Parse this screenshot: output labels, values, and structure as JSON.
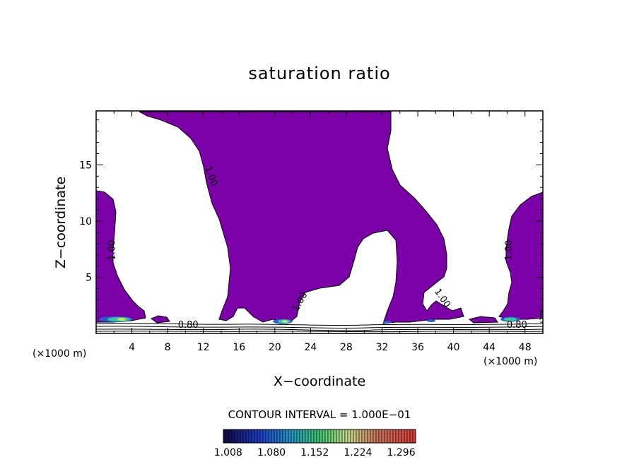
{
  "chart_data": {
    "type": "contour",
    "title": "saturation ratio",
    "xlabel": "X−coordinate",
    "ylabel": "Z−coordinate",
    "x_unit_label": "(×1000 m)",
    "z_unit_label": "(×1000 m)",
    "xlim": [
      0,
      50
    ],
    "ylim": [
      0,
      19.8
    ],
    "x_ticks": [
      4,
      8,
      12,
      16,
      20,
      24,
      28,
      32,
      36,
      40,
      44,
      48
    ],
    "y_ticks": [
      5,
      10,
      15
    ],
    "contour_interval_label": "CONTOUR INTERVAL = 1.000E−01",
    "contour_labels": [
      {
        "text": "1.00",
        "x": 12.6,
        "z": 13.9
      },
      {
        "text": "1.00",
        "x": 2.1,
        "z": 7.4
      },
      {
        "text": "1.00",
        "x": 23.1,
        "z": 2.7
      },
      {
        "text": "1.00",
        "x": 38.5,
        "z": 3.0
      },
      {
        "text": "1.00",
        "x": 46.5,
        "z": 7.4
      },
      {
        "text": "0.80",
        "x": 10.3,
        "z": 0.5
      },
      {
        "text": "0.80",
        "x": 47.1,
        "z": 0.5
      }
    ],
    "supersaturated_fill_color": "#7b00a8",
    "colorbar": {
      "ticks": [
        "1.008",
        "1.080",
        "1.152",
        "1.224",
        "1.296"
      ],
      "range": [
        1.0,
        1.32
      ]
    }
  }
}
